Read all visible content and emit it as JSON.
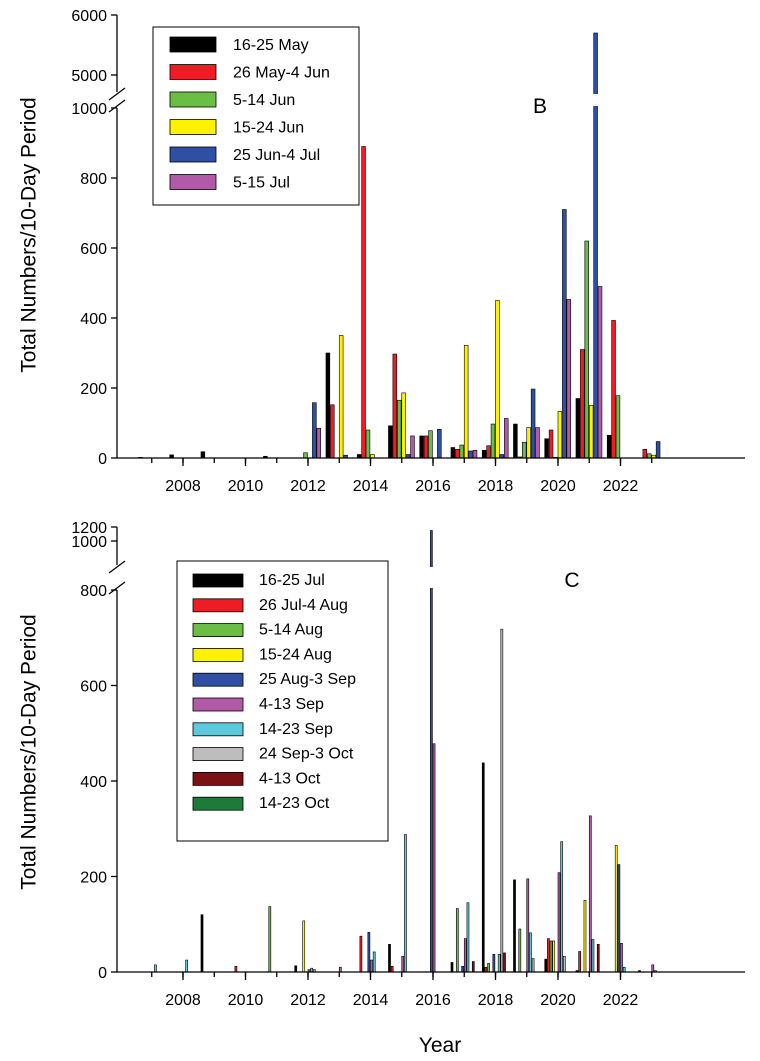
{
  "figure": {
    "xlabel": "Year"
  },
  "chart_data": [
    {
      "type": "bar",
      "panel_label": "B",
      "ylabel": "Total Numbers/10-Day Period",
      "x_ticks": [
        "2008",
        "2010",
        "2012",
        "2014",
        "2016",
        "2018",
        "2020",
        "2022"
      ],
      "y_ticks_lower": [
        "0",
        "200",
        "400",
        "600",
        "800",
        "1000"
      ],
      "y_ticks_upper": [
        "5000",
        "6000"
      ],
      "ylim_lower": [
        0,
        1000
      ],
      "ylim_upper": [
        5000,
        6000
      ],
      "axis_break": true,
      "legend_position": "top-left",
      "categories": [
        "2007",
        "2008",
        "2009",
        "2010",
        "2011",
        "2012",
        "2013",
        "2014",
        "2015",
        "2016",
        "2017",
        "2018",
        "2019",
        "2020",
        "2021",
        "2022",
        "2023"
      ],
      "series": [
        {
          "name": "16-25 May",
          "color": "#000000",
          "values": [
            2,
            9,
            18,
            0,
            5,
            0,
            300,
            10,
            92,
            63,
            30,
            22,
            97,
            55,
            170,
            65,
            0
          ]
        },
        {
          "name": "26 May-4 Jun",
          "color": "#ee1c25",
          "values": [
            0,
            0,
            0,
            0,
            0,
            0,
            152,
            890,
            297,
            63,
            25,
            35,
            3,
            80,
            310,
            393,
            25
          ]
        },
        {
          "name": "5-14 Jun",
          "color": "#6abd45",
          "values": [
            0,
            0,
            0,
            0,
            0,
            15,
            0,
            80,
            165,
            78,
            37,
            97,
            45,
            2,
            620,
            178,
            12
          ]
        },
        {
          "name": "15-24 Jun",
          "color": "#fff200",
          "values": [
            0,
            0,
            0,
            0,
            0,
            0,
            350,
            10,
            186,
            0,
            322,
            450,
            87,
            133,
            150,
            0,
            8
          ]
        },
        {
          "name": "25 Jun-4 Jul",
          "color": "#2e4fa3",
          "values": [
            0,
            0,
            0,
            0,
            0,
            158,
            8,
            0,
            10,
            82,
            20,
            10,
            197,
            710,
            5700,
            0,
            47
          ]
        },
        {
          "name": "5-15 Jul",
          "color": "#b25aa8",
          "values": [
            0,
            0,
            0,
            0,
            0,
            85,
            0,
            0,
            63,
            0,
            22,
            113,
            87,
            453,
            490,
            0,
            0
          ]
        }
      ]
    },
    {
      "type": "bar",
      "panel_label": "C",
      "ylabel": "Total Numbers/10-Day Period",
      "xlabel": "Year",
      "x_ticks": [
        "2008",
        "2010",
        "2012",
        "2014",
        "2016",
        "2018",
        "2020",
        "2022"
      ],
      "y_ticks_lower": [
        "0",
        "200",
        "400",
        "600",
        "800"
      ],
      "y_ticks_upper": [
        "1000",
        "1200"
      ],
      "ylim_lower": [
        0,
        800
      ],
      "ylim_upper": [
        900,
        1200
      ],
      "axis_break": true,
      "legend_position": "top-left",
      "categories": [
        "2007",
        "2008",
        "2009",
        "2010",
        "2011",
        "2012",
        "2013",
        "2014",
        "2015",
        "2016",
        "2017",
        "2018",
        "2019",
        "2020",
        "2021",
        "2022",
        "2023"
      ],
      "series": [
        {
          "name": "16-25 Jul",
          "color": "#000000",
          "values": [
            0,
            0,
            120,
            0,
            0,
            13,
            0,
            0,
            58,
            0,
            20,
            438,
            193,
            27,
            3,
            0,
            3
          ]
        },
        {
          "name": "26 Jul-4 Aug",
          "color": "#ee1c25",
          "values": [
            0,
            0,
            0,
            12,
            0,
            0,
            0,
            75,
            12,
            0,
            0,
            10,
            0,
            70,
            43,
            0,
            0
          ]
        },
        {
          "name": "5-14 Aug",
          "color": "#6abd45",
          "values": [
            0,
            0,
            0,
            0,
            137,
            0,
            0,
            0,
            0,
            0,
            133,
            18,
            90,
            65,
            0,
            0,
            0
          ]
        },
        {
          "name": "15-24 Aug",
          "color": "#fff200",
          "values": [
            0,
            0,
            0,
            0,
            0,
            107,
            0,
            0,
            0,
            0,
            0,
            0,
            0,
            65,
            150,
            265,
            0
          ]
        },
        {
          "name": "25 Aug-3 Sep",
          "color": "#2e4fa3",
          "values": [
            0,
            0,
            0,
            0,
            0,
            0,
            0,
            83,
            0,
            1150,
            12,
            37,
            0,
            0,
            0,
            225,
            0
          ]
        },
        {
          "name": "4-13 Sep",
          "color": "#b25aa8",
          "values": [
            0,
            0,
            0,
            0,
            0,
            5,
            10,
            25,
            33,
            478,
            70,
            0,
            195,
            208,
            327,
            60,
            15
          ]
        },
        {
          "name": "14-23 Sep",
          "color": "#5ec8dc",
          "values": [
            15,
            25,
            0,
            0,
            0,
            8,
            0,
            42,
            288,
            0,
            145,
            37,
            82,
            273,
            68,
            10,
            3
          ]
        },
        {
          "name": "24 Sep-3 Oct",
          "color": "#bdbdbd",
          "values": [
            0,
            0,
            0,
            0,
            0,
            5,
            0,
            0,
            0,
            0,
            0,
            718,
            28,
            33,
            0,
            0,
            0
          ]
        },
        {
          "name": "4-13 Oct",
          "color": "#7b1113",
          "values": [
            0,
            0,
            0,
            0,
            0,
            0,
            0,
            0,
            0,
            0,
            22,
            40,
            0,
            0,
            58,
            0,
            0
          ]
        },
        {
          "name": "14-23 Oct",
          "color": "#1d7a3a",
          "values": [
            0,
            0,
            0,
            0,
            0,
            0,
            0,
            0,
            0,
            0,
            0,
            0,
            0,
            0,
            0,
            0,
            0
          ]
        }
      ]
    }
  ]
}
